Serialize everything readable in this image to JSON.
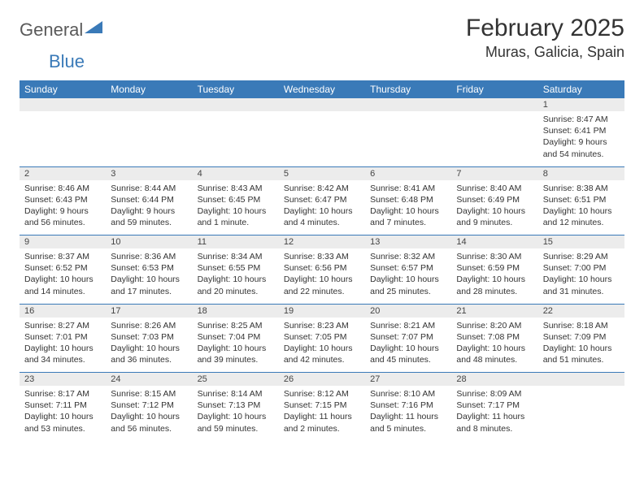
{
  "logo": {
    "text1": "General",
    "text2": "Blue"
  },
  "title": "February 2025",
  "location": "Muras, Galicia, Spain",
  "colors": {
    "header_bg": "#3a7ab8",
    "header_fg": "#ffffff",
    "daynum_bg": "#ececec",
    "border": "#3a7ab8",
    "text": "#333333"
  },
  "weekdays": [
    "Sunday",
    "Monday",
    "Tuesday",
    "Wednesday",
    "Thursday",
    "Friday",
    "Saturday"
  ],
  "weeks": [
    [
      null,
      null,
      null,
      null,
      null,
      null,
      {
        "n": "1",
        "sr": "8:47 AM",
        "ss": "6:41 PM",
        "dl": "9 hours and 54 minutes."
      }
    ],
    [
      {
        "n": "2",
        "sr": "8:46 AM",
        "ss": "6:43 PM",
        "dl": "9 hours and 56 minutes."
      },
      {
        "n": "3",
        "sr": "8:44 AM",
        "ss": "6:44 PM",
        "dl": "9 hours and 59 minutes."
      },
      {
        "n": "4",
        "sr": "8:43 AM",
        "ss": "6:45 PM",
        "dl": "10 hours and 1 minute."
      },
      {
        "n": "5",
        "sr": "8:42 AM",
        "ss": "6:47 PM",
        "dl": "10 hours and 4 minutes."
      },
      {
        "n": "6",
        "sr": "8:41 AM",
        "ss": "6:48 PM",
        "dl": "10 hours and 7 minutes."
      },
      {
        "n": "7",
        "sr": "8:40 AM",
        "ss": "6:49 PM",
        "dl": "10 hours and 9 minutes."
      },
      {
        "n": "8",
        "sr": "8:38 AM",
        "ss": "6:51 PM",
        "dl": "10 hours and 12 minutes."
      }
    ],
    [
      {
        "n": "9",
        "sr": "8:37 AM",
        "ss": "6:52 PM",
        "dl": "10 hours and 14 minutes."
      },
      {
        "n": "10",
        "sr": "8:36 AM",
        "ss": "6:53 PM",
        "dl": "10 hours and 17 minutes."
      },
      {
        "n": "11",
        "sr": "8:34 AM",
        "ss": "6:55 PM",
        "dl": "10 hours and 20 minutes."
      },
      {
        "n": "12",
        "sr": "8:33 AM",
        "ss": "6:56 PM",
        "dl": "10 hours and 22 minutes."
      },
      {
        "n": "13",
        "sr": "8:32 AM",
        "ss": "6:57 PM",
        "dl": "10 hours and 25 minutes."
      },
      {
        "n": "14",
        "sr": "8:30 AM",
        "ss": "6:59 PM",
        "dl": "10 hours and 28 minutes."
      },
      {
        "n": "15",
        "sr": "8:29 AM",
        "ss": "7:00 PM",
        "dl": "10 hours and 31 minutes."
      }
    ],
    [
      {
        "n": "16",
        "sr": "8:27 AM",
        "ss": "7:01 PM",
        "dl": "10 hours and 34 minutes."
      },
      {
        "n": "17",
        "sr": "8:26 AM",
        "ss": "7:03 PM",
        "dl": "10 hours and 36 minutes."
      },
      {
        "n": "18",
        "sr": "8:25 AM",
        "ss": "7:04 PM",
        "dl": "10 hours and 39 minutes."
      },
      {
        "n": "19",
        "sr": "8:23 AM",
        "ss": "7:05 PM",
        "dl": "10 hours and 42 minutes."
      },
      {
        "n": "20",
        "sr": "8:21 AM",
        "ss": "7:07 PM",
        "dl": "10 hours and 45 minutes."
      },
      {
        "n": "21",
        "sr": "8:20 AM",
        "ss": "7:08 PM",
        "dl": "10 hours and 48 minutes."
      },
      {
        "n": "22",
        "sr": "8:18 AM",
        "ss": "7:09 PM",
        "dl": "10 hours and 51 minutes."
      }
    ],
    [
      {
        "n": "23",
        "sr": "8:17 AM",
        "ss": "7:11 PM",
        "dl": "10 hours and 53 minutes."
      },
      {
        "n": "24",
        "sr": "8:15 AM",
        "ss": "7:12 PM",
        "dl": "10 hours and 56 minutes."
      },
      {
        "n": "25",
        "sr": "8:14 AM",
        "ss": "7:13 PM",
        "dl": "10 hours and 59 minutes."
      },
      {
        "n": "26",
        "sr": "8:12 AM",
        "ss": "7:15 PM",
        "dl": "11 hours and 2 minutes."
      },
      {
        "n": "27",
        "sr": "8:10 AM",
        "ss": "7:16 PM",
        "dl": "11 hours and 5 minutes."
      },
      {
        "n": "28",
        "sr": "8:09 AM",
        "ss": "7:17 PM",
        "dl": "11 hours and 8 minutes."
      },
      null
    ]
  ],
  "labels": {
    "sunrise": "Sunrise:",
    "sunset": "Sunset:",
    "daylight": "Daylight:"
  }
}
